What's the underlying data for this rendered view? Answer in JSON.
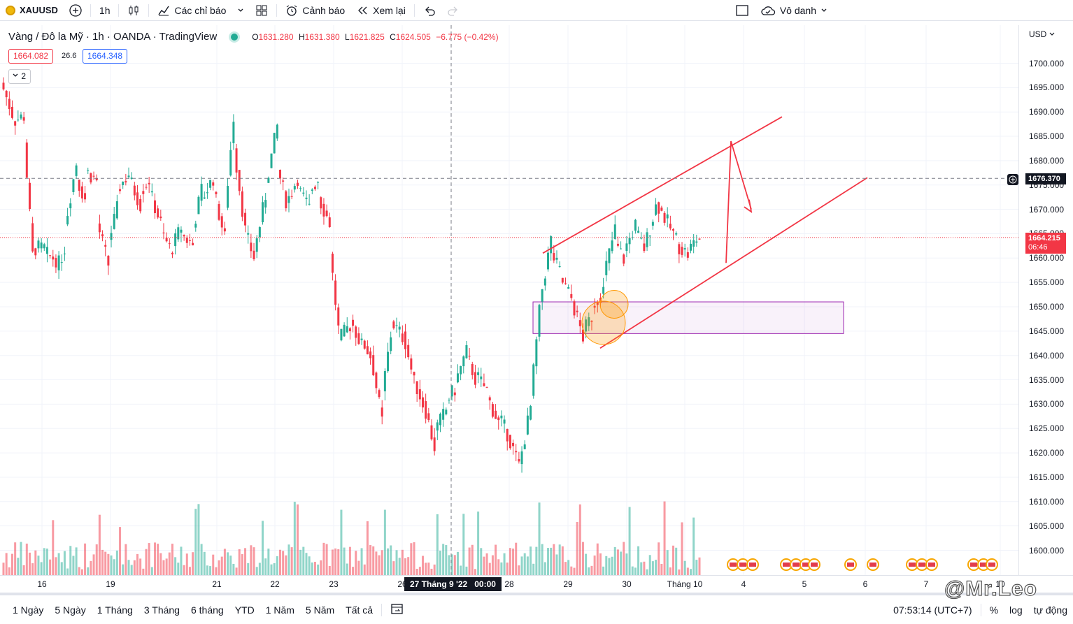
{
  "toolbar": {
    "symbol": "XAUUSD",
    "interval": "1h",
    "indicators": "Các chỉ báo",
    "alert": "Cảnh báo",
    "replay": "Xem lại",
    "layout_name": "Vô danh"
  },
  "legend": {
    "title": "Vàng / Đô la Mỹ · 1h · OANDA · TradingView",
    "open_label": "O",
    "open": "1631.280",
    "high_label": "H",
    "high": "1631.380",
    "low_label": "L",
    "low": "1621.825",
    "close_label": "C",
    "close": "1624.505",
    "change": "−6.775 (−0.42%)",
    "sell_price": "1664.082",
    "spread": "26.6",
    "buy_price": "1664.348",
    "indicators_count": "2"
  },
  "price_scale": {
    "currency": "USD",
    "ticks": [
      "1700.000",
      "1695.000",
      "1690.000",
      "1685.000",
      "1680.000",
      "1675.000",
      "1670.000",
      "1665.000",
      "1660.000",
      "1655.000",
      "1650.000",
      "1645.000",
      "1640.000",
      "1635.000",
      "1630.000",
      "1625.000",
      "1620.000",
      "1615.000",
      "1610.000",
      "1605.000",
      "1600.000"
    ],
    "crosshair_price": "1676.370",
    "last_price": "1664.215",
    "countdown": "06:46",
    "colors": {
      "last_price": "#f23645",
      "crosshair": "#131722"
    }
  },
  "time_scale": {
    "labels": [
      "16",
      "19",
      "21",
      "22",
      "23",
      "26",
      "28",
      "29",
      "30",
      "Tháng 10",
      "4",
      "5",
      "6",
      "7",
      "10"
    ],
    "crosshair_time": "27 Tháng 9 '22   00:00"
  },
  "bottom_bar": {
    "ranges": [
      "1 Ngày",
      "5 Ngày",
      "1 Tháng",
      "3 Tháng",
      "6 tháng",
      "YTD",
      "1 Năm",
      "5 Năm",
      "Tất cả"
    ],
    "clock": "07:53:14 (UTC+7)",
    "percent": "%",
    "log": "log",
    "auto": "tự động"
  },
  "watermark": "@Mr.Leo",
  "chart_data": {
    "type": "candlestick",
    "title": "Vàng / Đô la Mỹ · 1h · OANDA · TradingView",
    "ylim": [
      1597,
      1703
    ],
    "x": [
      "16",
      "19",
      "21",
      "22",
      "23",
      "26",
      "28",
      "29",
      "30",
      "Tháng 10"
    ],
    "path_points": [
      [
        1696,
        1690
      ],
      [
        1688,
        1689
      ],
      [
        1690,
        1660
      ],
      [
        1662,
        1662
      ],
      [
        1661,
        1660
      ],
      [
        1656,
        1662
      ],
      [
        1666,
        1678
      ],
      [
        1677,
        1672
      ],
      [
        1678,
        1676
      ],
      [
        1668,
        1660
      ],
      [
        1662,
        1670
      ],
      [
        1674,
        1677
      ],
      [
        1677,
        1672
      ],
      [
        1673,
        1676
      ],
      [
        1674,
        1668
      ],
      [
        1666,
        1662
      ],
      [
        1661,
        1666
      ],
      [
        1665,
        1663
      ],
      [
        1664,
        1674
      ],
      [
        1672,
        1676
      ],
      [
        1675,
        1666
      ],
      [
        1664,
        1688
      ],
      [
        1684,
        1668
      ],
      [
        1666,
        1660
      ],
      [
        1661,
        1672
      ],
      [
        1674,
        1685
      ],
      [
        1680,
        1672
      ],
      [
        1671,
        1676
      ],
      [
        1675,
        1671
      ],
      [
        1673,
        1676
      ],
      [
        1673,
        1668
      ],
      [
        1665,
        1645
      ],
      [
        1643,
        1646
      ],
      [
        1648,
        1643
      ],
      [
        1644,
        1640
      ],
      [
        1641,
        1628
      ],
      [
        1630,
        1645
      ],
      [
        1647,
        1644
      ],
      [
        1646,
        1636
      ],
      [
        1636,
        1630
      ],
      [
        1631,
        1622
      ],
      [
        1624,
        1628
      ],
      [
        1630,
        1633
      ],
      [
        1634,
        1640
      ],
      [
        1641,
        1635
      ],
      [
        1636,
        1633
      ],
      [
        1632,
        1627
      ],
      [
        1628,
        1624
      ],
      [
        1624,
        1618
      ],
      [
        1616,
        1627
      ],
      [
        1626,
        1648
      ],
      [
        1650,
        1662
      ],
      [
        1662,
        1657
      ],
      [
        1656,
        1652
      ],
      [
        1652,
        1645
      ],
      [
        1644,
        1648
      ],
      [
        1650,
        1653
      ],
      [
        1655,
        1664
      ],
      [
        1664,
        1660
      ],
      [
        1661,
        1666
      ],
      [
        1666,
        1662
      ],
      [
        1662,
        1670
      ],
      [
        1672,
        1668
      ],
      [
        1668,
        1664
      ],
      [
        1663,
        1661
      ],
      [
        1661,
        1664
      ],
      [
        1664,
        1664
      ]
    ],
    "annotations": {
      "channel_upper": [
        [
          1656,
          1661
        ],
        [
          1680,
          1676
        ],
        [
          1685,
          1689
        ]
      ],
      "channel_lower": [
        [
          1641,
          1643
        ],
        [
          1657,
          1658
        ],
        [
          1676,
          1676
        ]
      ],
      "demand_zone": [
        1644.5,
        1651
      ]
    }
  }
}
